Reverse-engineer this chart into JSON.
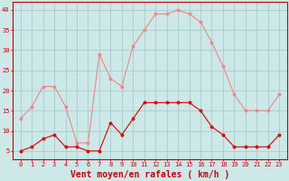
{
  "hours": [
    0,
    1,
    2,
    3,
    4,
    5,
    6,
    7,
    8,
    9,
    10,
    11,
    12,
    13,
    14,
    15,
    16,
    17,
    18,
    19,
    20,
    21,
    22,
    23
  ],
  "avg_wind": [
    5,
    6,
    8,
    9,
    6,
    6,
    5,
    5,
    12,
    9,
    13,
    17,
    17,
    17,
    17,
    17,
    15,
    11,
    9,
    6,
    6,
    6,
    6,
    9
  ],
  "gusts": [
    13,
    16,
    21,
    21,
    16,
    7,
    7,
    29,
    23,
    21,
    31,
    35,
    39,
    39,
    40,
    39,
    37,
    32,
    26,
    19,
    15,
    15,
    15,
    19
  ],
  "avg_color": "#dd0000",
  "gust_color": "#ee8888",
  "bg_color": "#cce8e8",
  "grid_color": "#aacccc",
  "axis_color": "#cc0000",
  "text_color": "#cc0000",
  "xlabel": "Vent moyen/en rafales ( km/h )",
  "ylim": [
    3,
    42
  ],
  "yticks": [
    5,
    10,
    15,
    20,
    25,
    30,
    35,
    40
  ],
  "xtick_labels": [
    "0",
    "1",
    "2",
    "3",
    "4",
    "5",
    "6",
    "7",
    "8",
    "9",
    "10",
    "11",
    "12",
    "13",
    "14",
    "15",
    "16",
    "17",
    "18",
    "19",
    "20",
    "21",
    "22",
    "23"
  ],
  "xlabel_fontsize": 7,
  "tick_fontsize": 5
}
